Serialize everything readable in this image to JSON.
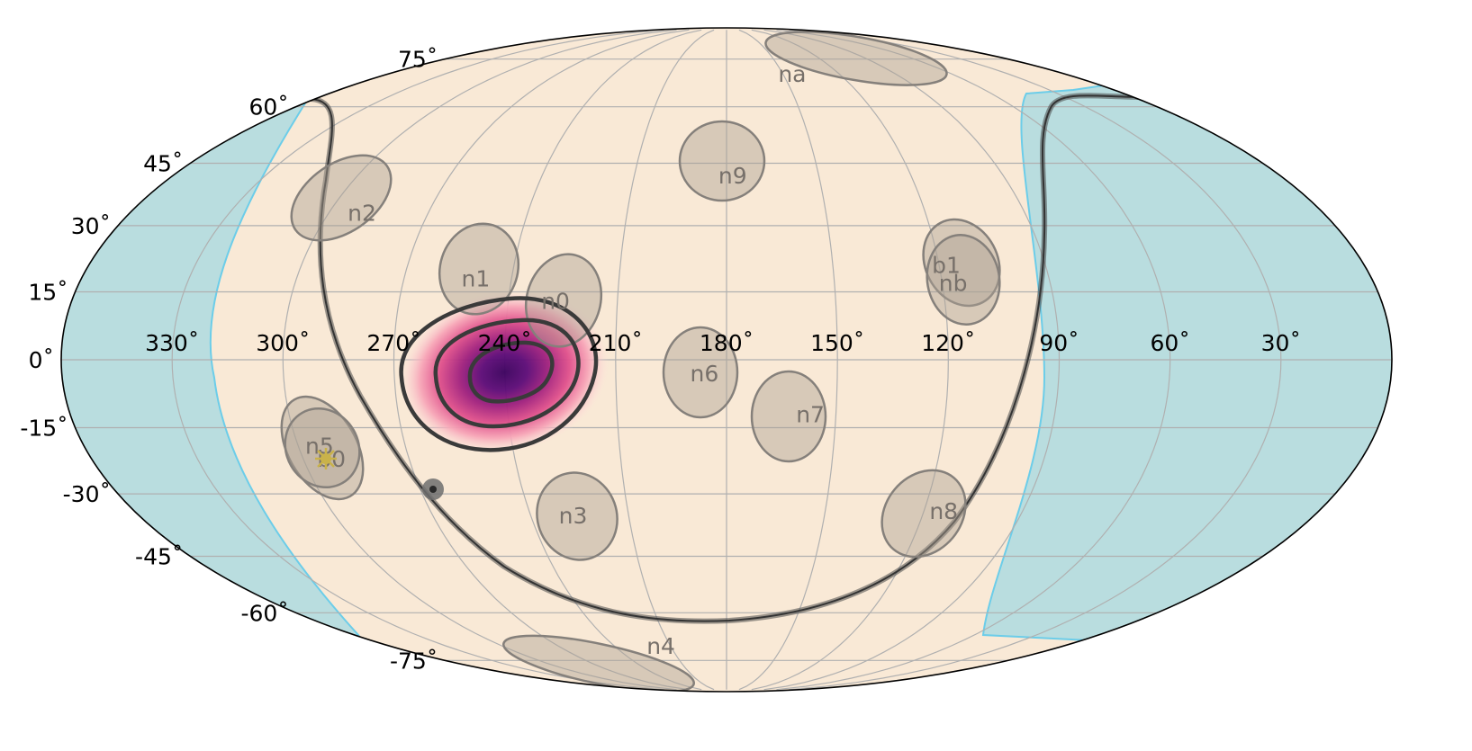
{
  "colors": {
    "background": "#ffffff",
    "sky_fill": "#f9e9d6",
    "shaded_fill": "#b9dddf",
    "shaded_edge": "#6ccde9",
    "region_fill": "#aea194",
    "region_edge": "#85807b",
    "region_label": "#77706a",
    "plane_line": "#5a5a5a",
    "contour": "#3a3a3a",
    "grid": "#b0b0b0",
    "marker_star": "#c9b24a"
  },
  "axes": {
    "projection": "mollweide",
    "longitude_increasing": "leftward",
    "longitude_labels": [
      "330˚",
      "300˚",
      "270˚",
      "240˚",
      "210˚",
      "180˚",
      "150˚",
      "120˚",
      "90˚",
      "60˚",
      "30˚"
    ],
    "longitude_values": [
      330,
      300,
      270,
      240,
      210,
      180,
      150,
      120,
      90,
      60,
      30
    ],
    "latitude_labels": [
      "75˚",
      "60˚",
      "45˚",
      "30˚",
      "15˚",
      "0˚",
      "-15˚",
      "-30˚",
      "-45˚",
      "-60˚",
      "-75˚"
    ],
    "latitude_values": [
      75,
      60,
      45,
      30,
      15,
      0,
      -15,
      -30,
      -45,
      -60,
      -75
    ],
    "grid": true
  },
  "regions": [
    {
      "label": "na",
      "lon": 145,
      "lat": 70
    },
    {
      "label": "n9",
      "lon": 178,
      "lat": 42
    },
    {
      "label": "n2",
      "lon": 290,
      "lat": 33
    },
    {
      "label": "n1",
      "lon": 250,
      "lat": 18
    },
    {
      "label": "n0",
      "lon": 227,
      "lat": 13
    },
    {
      "label": "b1",
      "lon": 118,
      "lat": 21
    },
    {
      "label": "nb",
      "lon": 117,
      "lat": 17
    },
    {
      "label": "n6",
      "lon": 186,
      "lat": -3
    },
    {
      "label": "n7",
      "lon": 157,
      "lat": -12
    },
    {
      "label": "n5",
      "lon": 294,
      "lat": -19
    },
    {
      "label": "b0",
      "lon": 292,
      "lat": -22
    },
    {
      "label": "n3",
      "lon": 227,
      "lat": -35
    },
    {
      "label": "n8",
      "lon": 114,
      "lat": -34
    },
    {
      "label": "n4",
      "lon": 215,
      "lat": -70
    }
  ],
  "probability_peak": {
    "lon": 240,
    "lat": -3
  },
  "marker_star": {
    "lon": 291,
    "lat": -22
  },
  "marker_dot": {
    "lon": 274,
    "lat": -29
  }
}
